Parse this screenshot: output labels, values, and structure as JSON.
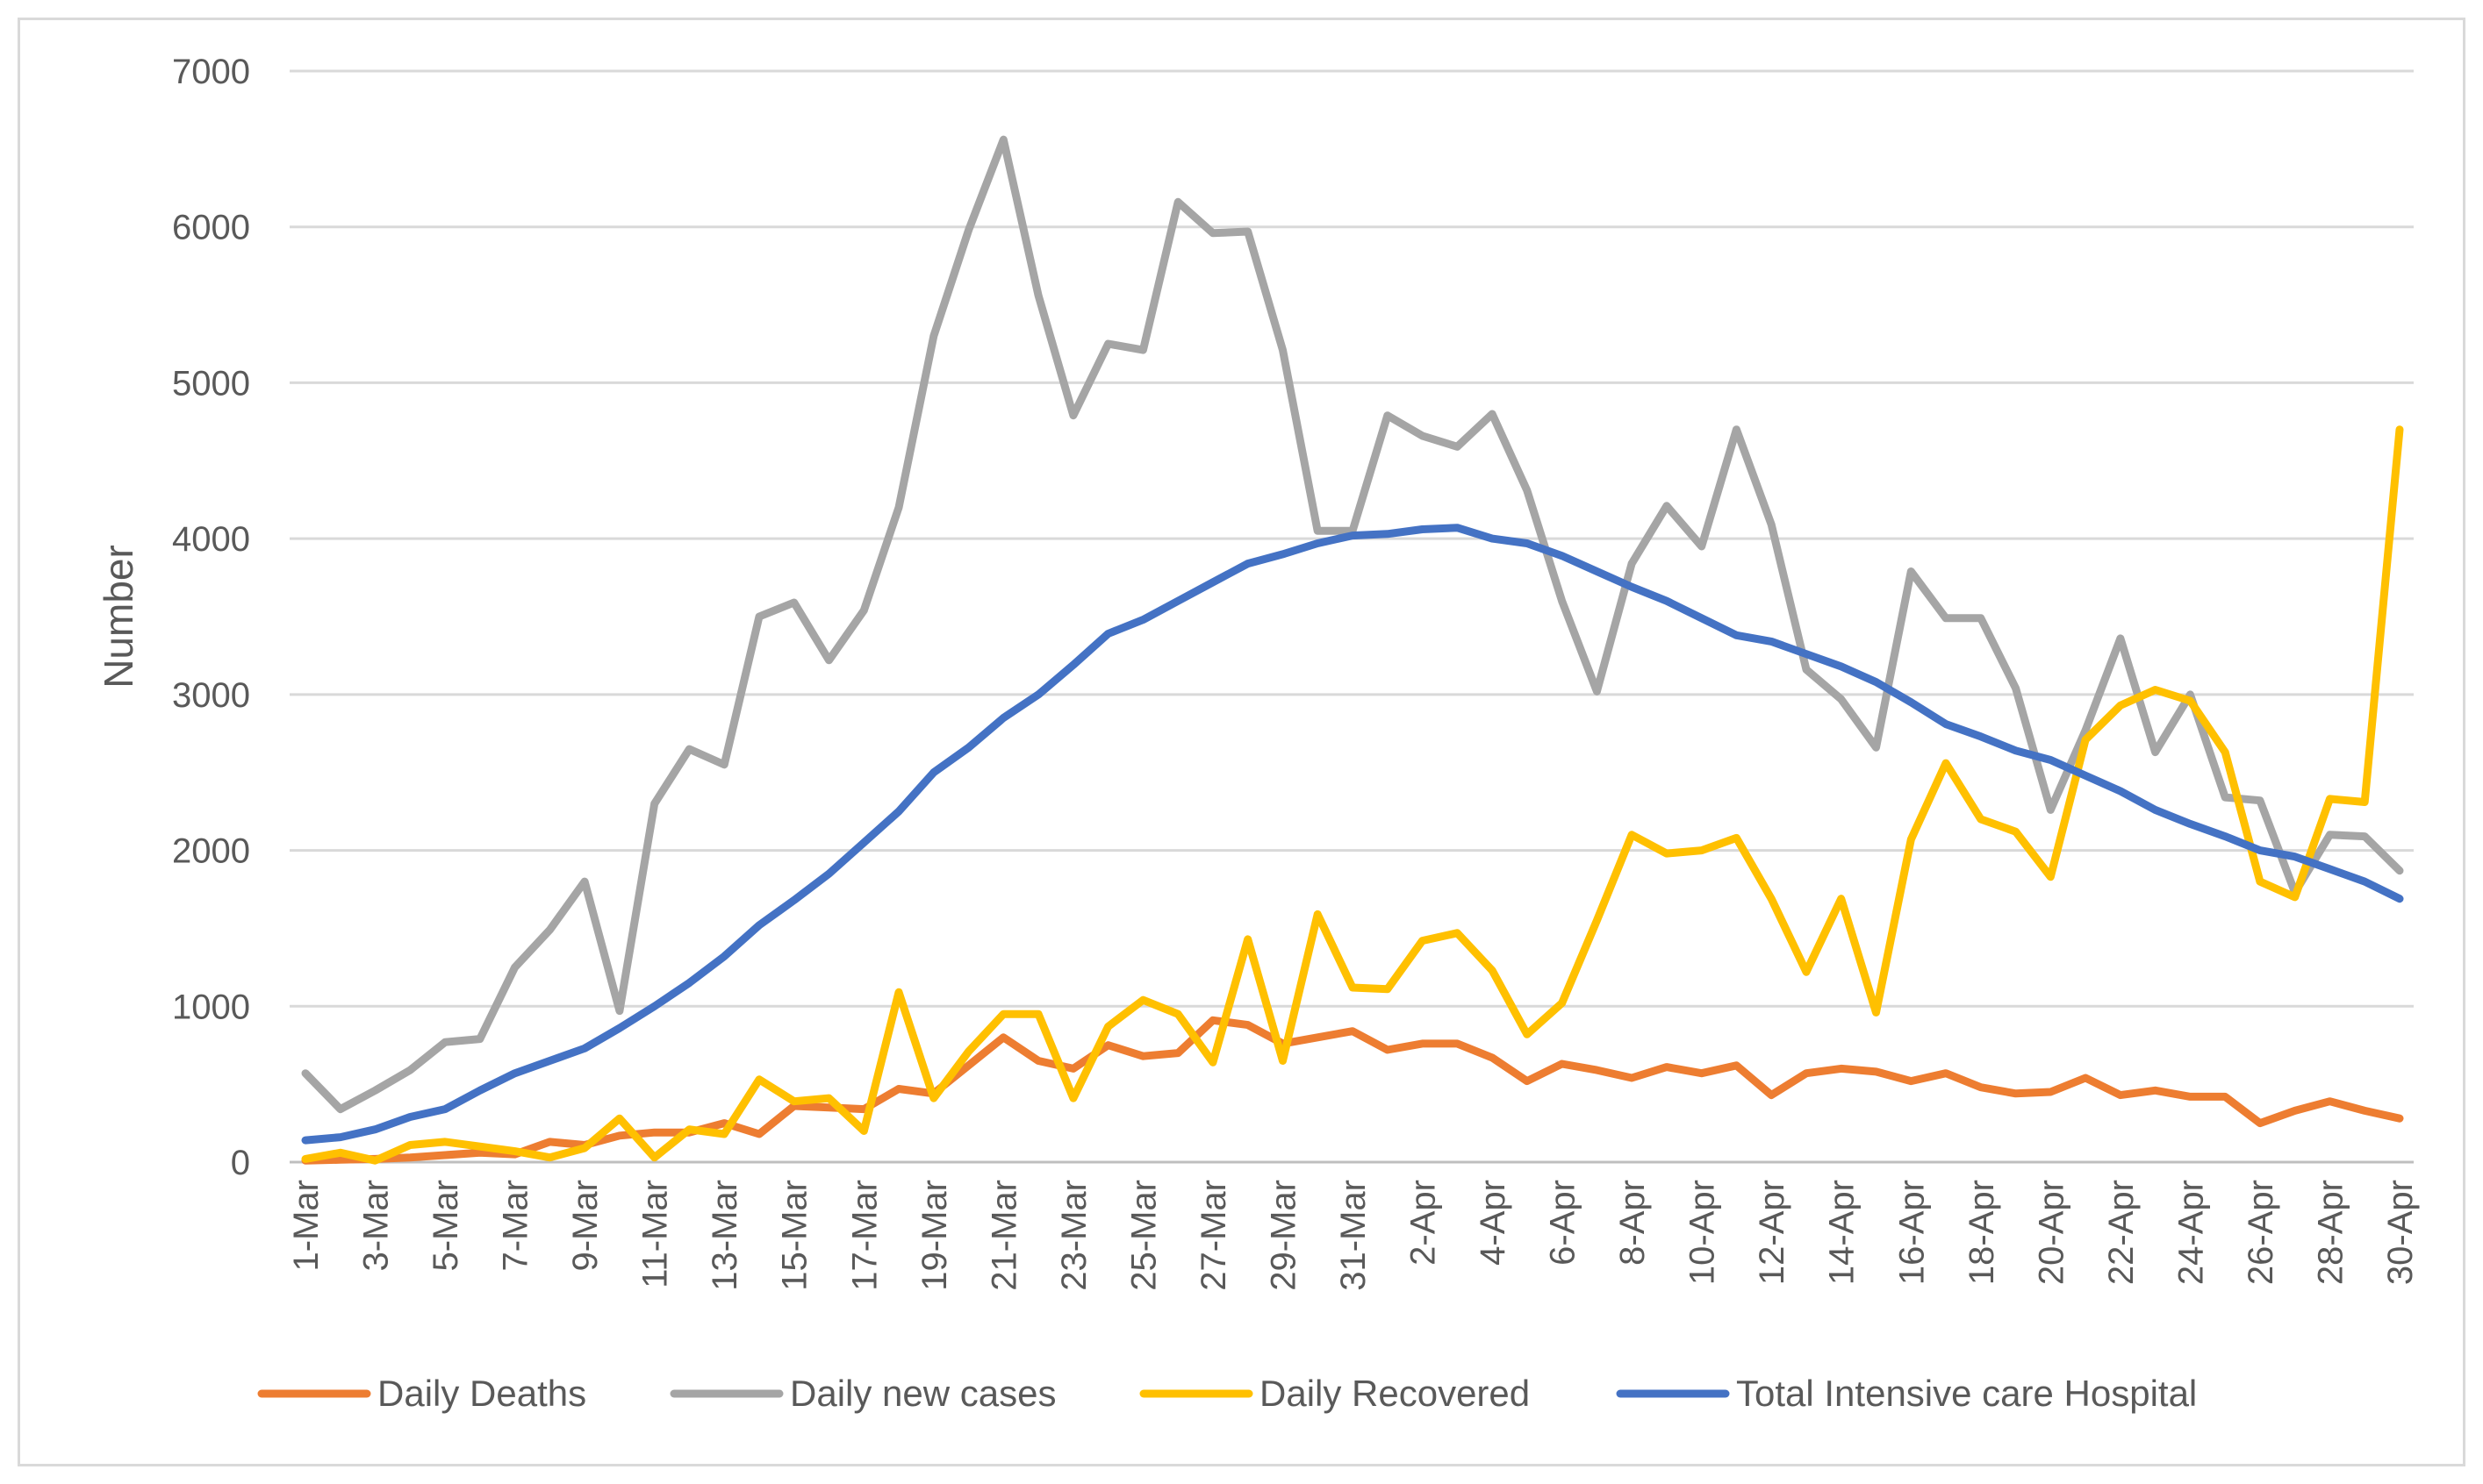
{
  "chart_data": {
    "type": "line",
    "title": "",
    "xlabel": "",
    "ylabel": "Number",
    "ylim": [
      0,
      7000
    ],
    "yticks": [
      0,
      1000,
      2000,
      3000,
      4000,
      5000,
      6000,
      7000
    ],
    "grid": true,
    "legend_position": "bottom",
    "x": [
      "1-Mar",
      "2-Mar",
      "3-Mar",
      "4-Mar",
      "5-Mar",
      "6-Mar",
      "7-Mar",
      "8-Mar",
      "9-Mar",
      "10-Mar",
      "11-Mar",
      "12-Mar",
      "13-Mar",
      "14-Mar",
      "15-Mar",
      "16-Mar",
      "17-Mar",
      "18-Mar",
      "19-Mar",
      "20-Mar",
      "21-Mar",
      "22-Mar",
      "23-Mar",
      "24-Mar",
      "25-Mar",
      "26-Mar",
      "27-Mar",
      "28-Mar",
      "29-Mar",
      "30-Mar",
      "31-Mar",
      "1-Apr",
      "2-Apr",
      "3-Apr",
      "4-Apr",
      "5-Apr",
      "6-Apr",
      "7-Apr",
      "8-Apr",
      "9-Apr",
      "10-Apr",
      "11-Apr",
      "12-Apr",
      "13-Apr",
      "14-Apr",
      "15-Apr",
      "16-Apr",
      "17-Apr",
      "18-Apr",
      "19-Apr",
      "20-Apr",
      "21-Apr",
      "22-Apr",
      "23-Apr",
      "24-Apr",
      "25-Apr",
      "26-Apr",
      "27-Apr",
      "28-Apr",
      "29-Apr",
      "30-Apr"
    ],
    "x_tick_labels": [
      "1-Mar",
      "3-Mar",
      "5-Mar",
      "7-Mar",
      "9-Mar",
      "11-Mar",
      "13-Mar",
      "15-Mar",
      "17-Mar",
      "19-Mar",
      "21-Mar",
      "23-Mar",
      "25-Mar",
      "27-Mar",
      "29-Mar",
      "31-Mar",
      "2-Apr",
      "4-Apr",
      "6-Apr",
      "8-Apr",
      "10-Apr",
      "12-Apr",
      "14-Apr",
      "16-Apr",
      "18-Apr",
      "20-Apr",
      "22-Apr",
      "24-Apr",
      "26-Apr",
      "28-Apr",
      "30-Apr"
    ],
    "series": [
      {
        "name": "Daily Deaths",
        "color": "#ED7D31",
        "values": [
          10,
          15,
          20,
          30,
          45,
          60,
          50,
          130,
          110,
          170,
          190,
          190,
          250,
          180,
          360,
          350,
          340,
          470,
          440,
          620,
          800,
          650,
          600,
          750,
          680,
          700,
          910,
          880,
          760,
          800,
          840,
          720,
          760,
          760,
          670,
          520,
          630,
          590,
          540,
          610,
          570,
          620,
          430,
          570,
          600,
          580,
          520,
          570,
          480,
          440,
          450,
          540,
          430,
          460,
          420,
          420,
          250,
          330,
          390,
          330,
          280
        ]
      },
      {
        "name": "Daily new cases",
        "color": "#A5A5A5",
        "values": [
          570,
          340,
          460,
          590,
          770,
          790,
          1250,
          1490,
          1800,
          970,
          2300,
          2650,
          2550,
          3500,
          3590,
          3220,
          3540,
          4200,
          5300,
          5980,
          6560,
          5560,
          4790,
          5250,
          5210,
          6160,
          5960,
          5970,
          5210,
          4050,
          4050,
          4790,
          4660,
          4590,
          4800,
          4310,
          3600,
          3020,
          3840,
          4210,
          3950,
          4700,
          4090,
          3160,
          2970,
          2660,
          3790,
          3490,
          3490,
          3040,
          2260,
          2770,
          3360,
          2630,
          3000,
          2340,
          2320,
          1730,
          2100,
          2090,
          1870
        ]
      },
      {
        "name": "Daily Recovered",
        "color": "#FFC000",
        "values": [
          20,
          60,
          10,
          110,
          130,
          100,
          70,
          30,
          90,
          280,
          30,
          210,
          180,
          530,
          390,
          410,
          200,
          1090,
          410,
          710,
          950,
          950,
          410,
          870,
          1040,
          950,
          640,
          1430,
          650,
          1590,
          1120,
          1110,
          1420,
          1470,
          1230,
          820,
          1020,
          1550,
          2100,
          1980,
          2000,
          2080,
          1690,
          1220,
          1690,
          960,
          2070,
          2560,
          2200,
          2120,
          1830,
          2710,
          2930,
          3030,
          2960,
          2630,
          1800,
          1700,
          2330,
          2310,
          4700
        ]
      },
      {
        "name": "Total Intensive care Hospital",
        "color": "#4472C4",
        "values": [
          140,
          160,
          210,
          290,
          340,
          460,
          570,
          650,
          730,
          860,
          1000,
          1150,
          1320,
          1520,
          1680,
          1850,
          2050,
          2250,
          2500,
          2660,
          2850,
          3000,
          3190,
          3390,
          3480,
          3600,
          3720,
          3840,
          3900,
          3970,
          4020,
          4030,
          4060,
          4070,
          4000,
          3970,
          3890,
          3790,
          3690,
          3600,
          3490,
          3380,
          3340,
          3260,
          3180,
          3080,
          2950,
          2810,
          2730,
          2640,
          2580,
          2480,
          2380,
          2260,
          2170,
          2090,
          2000,
          1960,
          1880,
          1800,
          1690
        ]
      }
    ]
  }
}
